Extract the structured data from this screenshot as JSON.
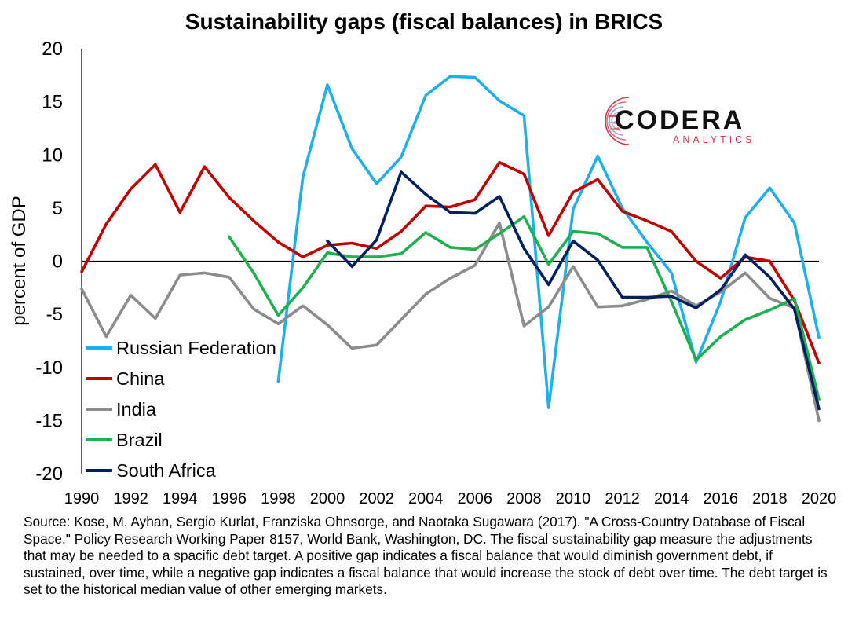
{
  "chart_data": {
    "type": "line",
    "title": "Sustainability gaps (fiscal balances) in BRICS",
    "ylabel": "percent of GDP",
    "xlabel": "",
    "xlim": [
      1990,
      2020
    ],
    "ylim": [
      -20,
      20
    ],
    "yticks": [
      -20,
      -15,
      -10,
      -5,
      0,
      5,
      10,
      15,
      20
    ],
    "xticks": [
      1990,
      1992,
      1994,
      1996,
      1998,
      2000,
      2002,
      2004,
      2006,
      2008,
      2010,
      2012,
      2014,
      2016,
      2018,
      2020
    ],
    "grid": false,
    "legend": "bottom-left",
    "zero_line": true,
    "series": [
      {
        "name": "Russian Federation",
        "color": "#1fb0ec",
        "x": [
          1998,
          1999,
          2000,
          2001,
          2002,
          2003,
          2004,
          2005,
          2006,
          2007,
          2008,
          2009,
          2010,
          2011,
          2012,
          2013,
          2014,
          2015,
          2016,
          2017,
          2018,
          2019,
          2020
        ],
        "values": [
          -11.3,
          7.9,
          16.6,
          10.6,
          7.3,
          9.8,
          15.6,
          17.4,
          17.3,
          15.1,
          13.7,
          -13.8,
          4.9,
          9.9,
          5.0,
          1.8,
          -1.1,
          -9.5,
          -3.8,
          4.1,
          6.9,
          3.6,
          -7.2
        ]
      },
      {
        "name": "China",
        "color": "#c00000",
        "x": [
          1990,
          1991,
          1992,
          1993,
          1994,
          1995,
          1996,
          1997,
          1998,
          1999,
          2000,
          2001,
          2002,
          2003,
          2004,
          2005,
          2006,
          2007,
          2008,
          2009,
          2010,
          2011,
          2012,
          2013,
          2014,
          2015,
          2016,
          2017,
          2018,
          2019,
          2020
        ],
        "values": [
          -1.0,
          3.5,
          6.8,
          9.1,
          4.6,
          8.9,
          6.0,
          3.8,
          1.8,
          0.4,
          1.5,
          1.7,
          1.2,
          2.8,
          5.2,
          5.1,
          5.8,
          9.3,
          8.2,
          2.4,
          6.5,
          7.7,
          4.7,
          3.8,
          2.8,
          0.0,
          -1.6,
          0.4,
          0.0,
          -3.7,
          -9.6
        ]
      },
      {
        "name": "India",
        "color": "#8c8c8c",
        "x": [
          1990,
          1991,
          1992,
          1993,
          1994,
          1995,
          1996,
          1997,
          1998,
          1999,
          2000,
          2001,
          2002,
          2003,
          2004,
          2005,
          2006,
          2007,
          2008,
          2009,
          2010,
          2011,
          2012,
          2013,
          2014,
          2015,
          2016,
          2017,
          2018,
          2019,
          2020
        ],
        "values": [
          -2.6,
          -7.1,
          -3.2,
          -5.4,
          -1.3,
          -1.1,
          -1.5,
          -4.5,
          -5.9,
          -4.2,
          -6.0,
          -8.2,
          -7.9,
          -5.5,
          -3.1,
          -1.6,
          -0.4,
          3.6,
          -6.1,
          -4.3,
          -0.5,
          -4.3,
          -4.2,
          -3.6,
          -2.8,
          -4.2,
          -2.9,
          -1.1,
          -3.5,
          -4.4,
          -15.0
        ]
      },
      {
        "name": "Brazil",
        "color": "#1fb050",
        "x": [
          1996,
          1997,
          1998,
          1999,
          2000,
          2001,
          2002,
          2003,
          2004,
          2005,
          2006,
          2007,
          2008,
          2009,
          2010,
          2011,
          2012,
          2013,
          2014,
          2015,
          2016,
          2017,
          2018,
          2019,
          2020
        ],
        "values": [
          2.3,
          -1.1,
          -5.1,
          -2.5,
          0.8,
          0.4,
          0.4,
          0.7,
          2.7,
          1.3,
          1.1,
          2.6,
          4.2,
          -0.3,
          2.8,
          2.6,
          1.3,
          1.3,
          -3.8,
          -9.3,
          -7.1,
          -5.5,
          -4.6,
          -3.5,
          -13.0
        ]
      },
      {
        "name": "South Africa",
        "color": "#002060",
        "x": [
          2000,
          2001,
          2002,
          2003,
          2004,
          2005,
          2006,
          2007,
          2008,
          2009,
          2010,
          2011,
          2012,
          2013,
          2014,
          2015,
          2016,
          2017,
          2018,
          2019,
          2020
        ],
        "values": [
          1.9,
          -0.5,
          2.0,
          8.4,
          6.3,
          4.6,
          4.5,
          6.1,
          1.2,
          -2.2,
          1.9,
          0.1,
          -3.4,
          -3.4,
          -3.3,
          -4.4,
          -2.7,
          0.6,
          -1.5,
          -4.5,
          -13.9
        ]
      }
    ]
  },
  "source_note": "Source: Kose, M. Ayhan, Sergio Kurlat, Franziska Ohnsorge, and Naotaka Sugawara (2017). \"A Cross-Country Database of Fiscal Space.\" Policy Research Working Paper 8157, World Bank, Washington, DC. The fiscal sustainability gap measure the adjustments that may be needed to a spacific debt target. A positive gap indicates a fiscal balance that would diminish government debt, if sustained, over time, while a negative gap indicates a fiscal balance that would increase the stock of debt over time. The debt target is set to the historical median value of other emerging markets.",
  "logo": {
    "text": "CODERA",
    "subtext": "ANALYTICS",
    "accent_color": "#d13a4a"
  }
}
